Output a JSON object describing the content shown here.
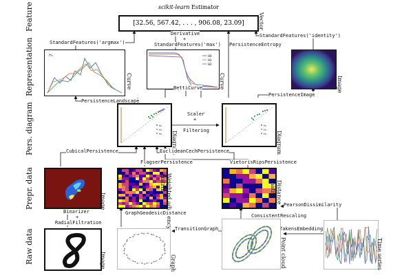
{
  "rows": {
    "feature": "Feature",
    "representation": "Representation",
    "pers_diagram": "Pers. diagram",
    "prepr_data": "Prepr. data",
    "raw_data": "Raw data"
  },
  "estimator": {
    "title_italic": "scikit-learn",
    "title_rest": " Estimator",
    "vector": "[32.56, 567.42, . . . , 906.08, 23.09]",
    "vector_label": "Vector"
  },
  "transforms": {
    "standard_argmax": "StandardFeatures('argmax')",
    "derivative": "Derivative",
    "plus": "+",
    "standard_max": "StandardFeatures('max')",
    "persistence_entropy": "PersistenceEntropy",
    "standard_identity": "StandardFeatures('identity')",
    "persistence_landscape": "PersistenceLandscape",
    "betti_curve": "BettiCurve",
    "persistence_image": "PersistenceImage",
    "scaler": "Scaler",
    "filtering": "Filtering",
    "cubical_persistence": "CubicalPersistence",
    "euclidean_cech": "EuclideanCechPersistence",
    "flagser": "FlagserPersistence",
    "vietoris_rips": "VietorisRipsPersistence",
    "pearson": "PearsonDissimilarity",
    "consistent_rescaling": "ConsistentRescaling",
    "binarizer": "Binarizer",
    "radial": "RadialFiltration",
    "graph_geodesic": "GraphGeodesicDistance",
    "transition_graph": "TransitionGraph",
    "takens": "TakensEmbedding"
  },
  "panel_labels": {
    "curve1": "Curve",
    "curve2": "Curve",
    "image_rep": "Image",
    "diagram1": "Diagram",
    "diagram2": "Diagram",
    "image_prepr": "Image",
    "weighted_adj_1": "Weighted adjacency",
    "weighted_adj_2": "matrix",
    "distance_1": "Distance",
    "distance_2": "matrix",
    "image_raw": "Image",
    "graph": "Graph",
    "point_cloud": "Point cloud",
    "time_series": "Time series"
  },
  "legend": {
    "h0": "H0",
    "h1": "H1",
    "h2": "H2"
  },
  "colors": {
    "h0": "#4c72b0",
    "h1": "#dd8452",
    "h2": "#55a868",
    "purple": "#8172b2"
  }
}
